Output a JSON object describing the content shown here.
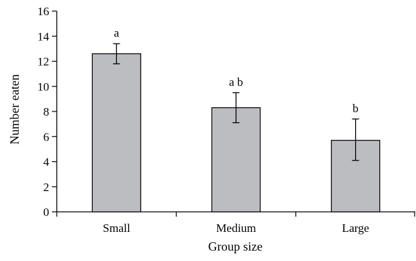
{
  "chart_data": {
    "type": "bar",
    "categories": [
      "Small",
      "Medium",
      "Large"
    ],
    "values": [
      12.6,
      8.3,
      5.7
    ],
    "error_upper": [
      13.4,
      9.5,
      7.4
    ],
    "error_lower": [
      11.8,
      7.1,
      4.1
    ],
    "significance_labels": [
      "a",
      "a b",
      "b"
    ],
    "title": "",
    "xlabel": "Group size",
    "ylabel": "Number eaten",
    "ylim": [
      0,
      16
    ],
    "yticks": [
      "0",
      "2",
      "4",
      "6",
      "8",
      "10",
      "12",
      "14",
      "16"
    ],
    "grid": false,
    "legend": "none",
    "bar_color": "#bcbdc1"
  }
}
